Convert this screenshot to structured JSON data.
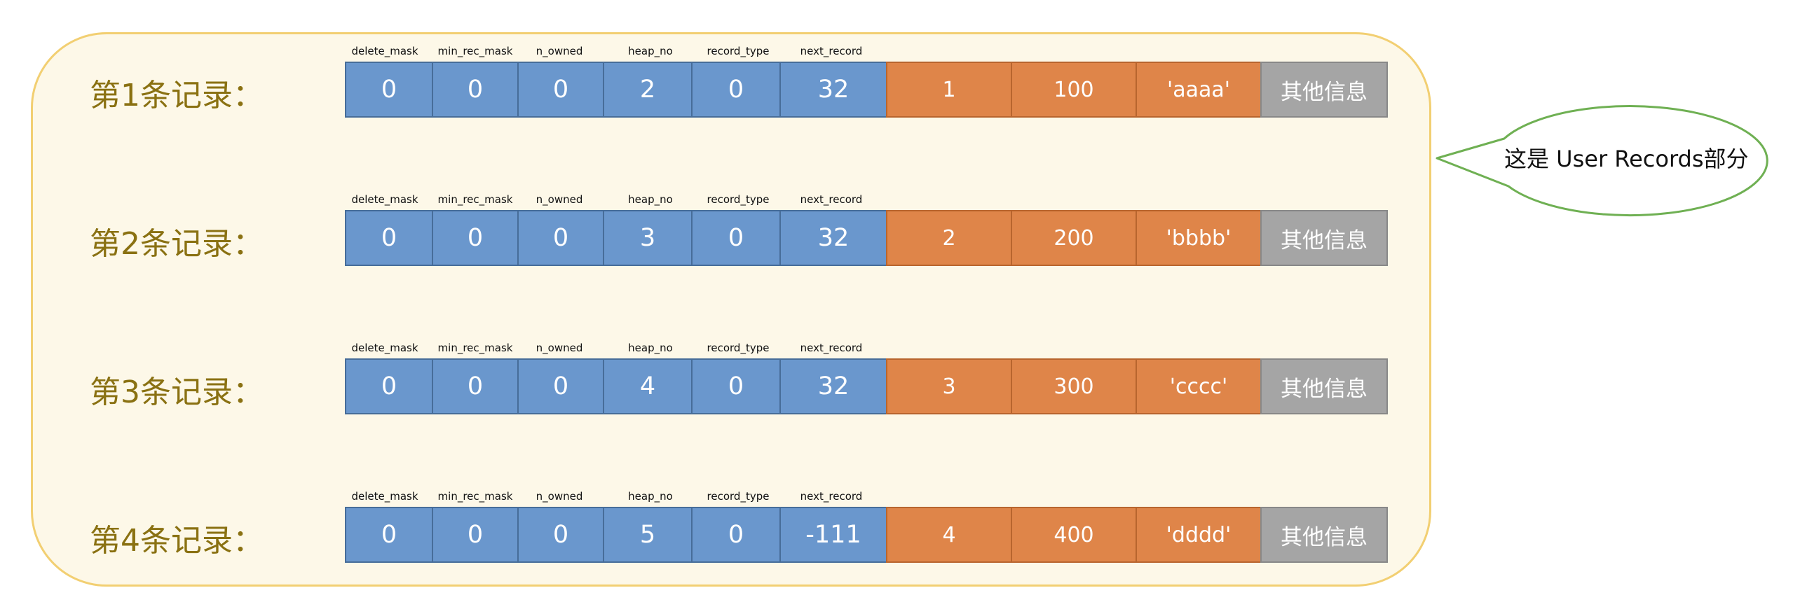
{
  "headers": [
    "delete_mask",
    "min_rec_mask",
    "n_owned",
    "heap_no",
    "record_type",
    "next_record"
  ],
  "records": [
    {
      "label": "第1条记录：",
      "header_values": [
        "0",
        "0",
        "0",
        "2",
        "0",
        "32"
      ],
      "data_values": [
        "1",
        "100",
        "'aaaa'"
      ],
      "other": "其他信息"
    },
    {
      "label": "第2条记录：",
      "header_values": [
        "0",
        "0",
        "0",
        "3",
        "0",
        "32"
      ],
      "data_values": [
        "2",
        "200",
        "'bbbb'"
      ],
      "other": "其他信息"
    },
    {
      "label": "第3条记录：",
      "header_values": [
        "0",
        "0",
        "0",
        "4",
        "0",
        "32"
      ],
      "data_values": [
        "3",
        "300",
        "'cccc'"
      ],
      "other": "其他信息"
    },
    {
      "label": "第4条记录：",
      "header_values": [
        "0",
        "0",
        "0",
        "5",
        "0",
        "-111"
      ],
      "data_values": [
        "4",
        "400",
        "'dddd'"
      ],
      "other": "其他信息"
    }
  ],
  "callout": {
    "text": "这是 User Records部分"
  },
  "colors": {
    "panel_fill": "#fdf8e8",
    "panel_border": "#f2cf72",
    "header_cell": "#6a97cd",
    "data_cell": "#df8549",
    "other_cell": "#a5a5a5",
    "label_text": "#8a7112",
    "callout_border": "#6fb053"
  }
}
